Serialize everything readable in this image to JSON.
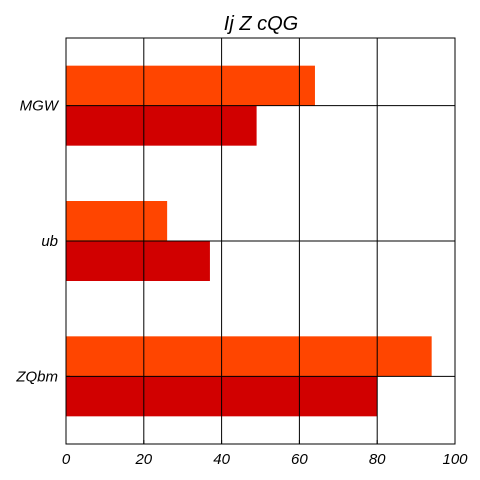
{
  "chart_data": {
    "type": "bar",
    "orientation": "horizontal",
    "title": "Ij  Z  cQG",
    "xlabel": "",
    "ylabel": "",
    "categories": [
      "MGW",
      "ub",
      "ZQbm"
    ],
    "series": [
      {
        "color": "#ff4500",
        "values": [
          64,
          26,
          94
        ]
      },
      {
        "color": "#d10000",
        "values": [
          49,
          37,
          80
        ]
      }
    ],
    "xlim": [
      0,
      100
    ],
    "xticks": [
      0,
      20,
      40,
      60,
      80,
      100
    ],
    "grid": true,
    "legend": "none"
  }
}
